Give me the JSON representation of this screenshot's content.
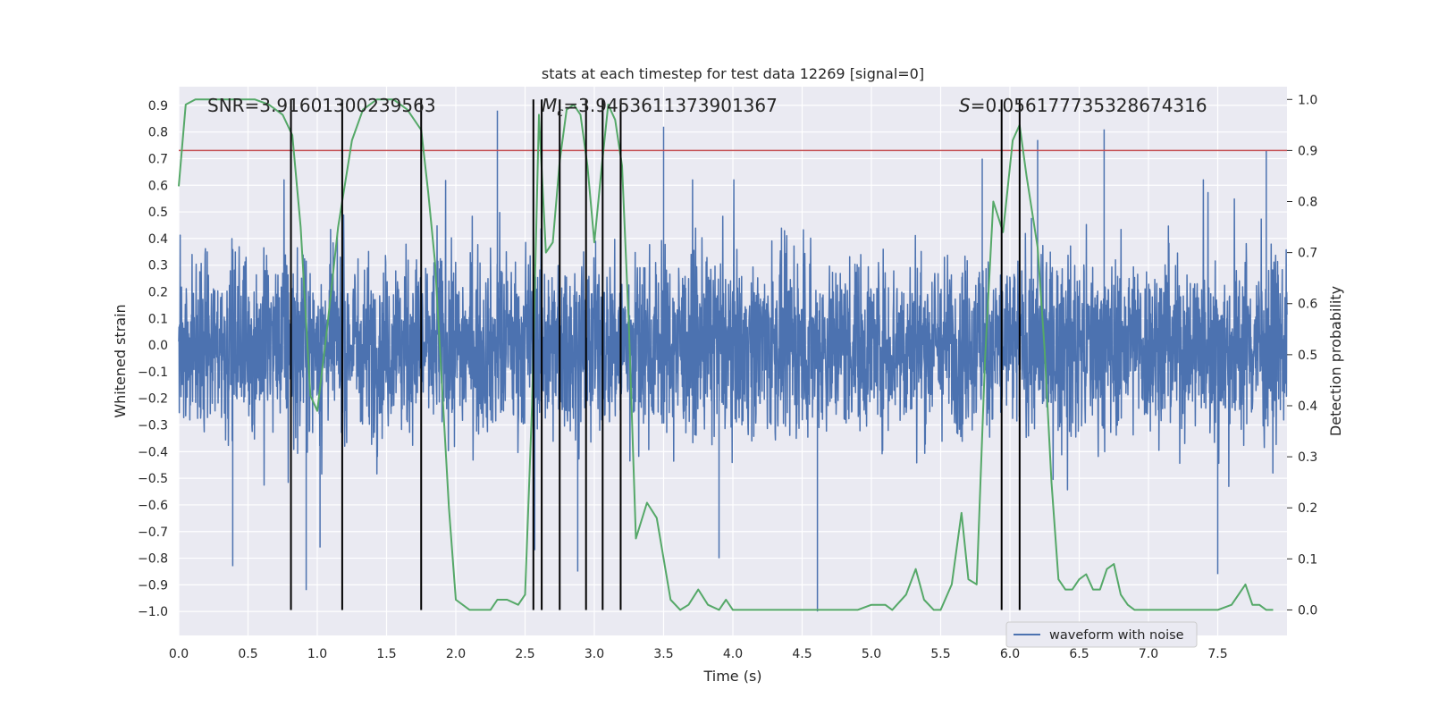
{
  "chart_data": {
    "type": "line",
    "title": "stats at each timestep for test data 12269 [signal=0]",
    "xlabel": "Time (s)",
    "ylabel_left": "Whitened strain",
    "ylabel_right": "Detection probability",
    "xlim": [
      0,
      8
    ],
    "ylim_left": [
      -1.09,
      0.97
    ],
    "ylim_right": [
      -0.05,
      1.025
    ],
    "x_ticks": [
      "0.0",
      "0.5",
      "1.0",
      "1.5",
      "2.0",
      "2.5",
      "3.0",
      "3.5",
      "4.0",
      "4.5",
      "5.0",
      "5.5",
      "6.0",
      "6.5",
      "7.0",
      "7.5"
    ],
    "x_tick_values": [
      0,
      0.5,
      1,
      1.5,
      2,
      2.5,
      3,
      3.5,
      4,
      4.5,
      5,
      5.5,
      6,
      6.5,
      7,
      7.5
    ],
    "y_left_ticks": [
      "0.9",
      "0.8",
      "0.7",
      "0.6",
      "0.5",
      "0.4",
      "0.3",
      "0.2",
      "0.1",
      "0.0",
      "−0.1",
      "−0.2",
      "−0.3",
      "−0.4",
      "−0.5",
      "−0.6",
      "−0.7",
      "−0.8",
      "−0.9",
      "−1.0"
    ],
    "y_left_tick_values": [
      0.9,
      0.8,
      0.7,
      0.6,
      0.5,
      0.4,
      0.3,
      0.2,
      0.1,
      0.0,
      -0.1,
      -0.2,
      -0.3,
      -0.4,
      -0.5,
      -0.6,
      -0.7,
      -0.8,
      -0.9,
      -1.0
    ],
    "y_right_ticks": [
      "1.0",
      "0.9",
      "0.8",
      "0.7",
      "0.6",
      "0.5",
      "0.4",
      "0.3",
      "0.2",
      "0.1",
      "0.0"
    ],
    "y_right_tick_values": [
      1.0,
      0.9,
      0.8,
      0.7,
      0.6,
      0.5,
      0.4,
      0.3,
      0.2,
      0.1,
      0.0
    ],
    "annotations": {
      "snr": "SNR=3.91601300239563",
      "mc_symbol": "M",
      "mc_sub": "c",
      "mc_value": "=3.9453611373901367",
      "s_symbol": "S",
      "s_value": "=0.056177735328674316"
    },
    "threshold": {
      "value": 0.9,
      "axis": "right",
      "color": "#c44e52"
    },
    "vertical_markers": [
      0.81,
      1.18,
      1.75,
      2.56,
      2.62,
      2.75,
      2.94,
      3.06,
      3.19,
      5.94,
      6.07
    ],
    "marker_range_right": [
      0.0,
      1.0
    ],
    "series": [
      {
        "name": "waveform with noise",
        "axis": "left",
        "color": "#4c72b0",
        "kind": "noise",
        "typical_range": [
          -0.55,
          0.62
        ],
        "spikes": [
          {
            "x": 0.39,
            "y": -0.83
          },
          {
            "x": 0.92,
            "y": -0.92
          },
          {
            "x": 1.02,
            "y": -0.76
          },
          {
            "x": 2.3,
            "y": 0.88
          },
          {
            "x": 2.57,
            "y": -0.77
          },
          {
            "x": 2.88,
            "y": -0.85
          },
          {
            "x": 3.5,
            "y": 0.82
          },
          {
            "x": 3.9,
            "y": -0.8
          },
          {
            "x": 4.61,
            "y": -1.0
          },
          {
            "x": 6.2,
            "y": 0.77
          },
          {
            "x": 6.68,
            "y": 0.81
          },
          {
            "x": 7.5,
            "y": -0.86
          },
          {
            "x": 7.85,
            "y": 0.73
          },
          {
            "x": 5.8,
            "y": 0.7
          }
        ]
      },
      {
        "name": "",
        "axis": "right",
        "color": "#55a868",
        "kind": "line",
        "x": [
          0,
          0.05,
          0.12,
          0.25,
          0.4,
          0.55,
          0.65,
          0.75,
          0.82,
          0.88,
          0.95,
          1.0,
          1.07,
          1.15,
          1.25,
          1.33,
          1.43,
          1.55,
          1.65,
          1.75,
          1.8,
          1.85,
          1.95,
          2.0,
          2.1,
          2.2,
          2.25,
          2.3,
          2.37,
          2.45,
          2.5,
          2.55,
          2.6,
          2.65,
          2.7,
          2.75,
          2.8,
          2.85,
          2.9,
          2.95,
          3.0,
          3.05,
          3.1,
          3.15,
          3.2,
          3.25,
          3.3,
          3.38,
          3.45,
          3.55,
          3.62,
          3.68,
          3.75,
          3.82,
          3.9,
          3.95,
          4.0,
          4.1,
          4.3,
          4.5,
          4.7,
          4.9,
          5.0,
          5.1,
          5.15,
          5.25,
          5.32,
          5.38,
          5.45,
          5.5,
          5.58,
          5.65,
          5.7,
          5.76,
          5.82,
          5.88,
          5.95,
          6.02,
          6.07,
          6.12,
          6.2,
          6.25,
          6.3,
          6.35,
          6.4,
          6.45,
          6.5,
          6.55,
          6.6,
          6.65,
          6.7,
          6.75,
          6.8,
          6.85,
          6.9,
          6.95,
          7.0,
          7.1,
          7.2,
          7.3,
          7.4,
          7.5,
          7.6,
          7.7,
          7.75,
          7.8,
          7.85,
          7.9
        ],
        "y": [
          0.83,
          0.99,
          1.0,
          1.0,
          1.0,
          1.0,
          0.99,
          0.97,
          0.93,
          0.75,
          0.42,
          0.39,
          0.55,
          0.75,
          0.92,
          0.98,
          1.0,
          1.0,
          0.98,
          0.94,
          0.82,
          0.68,
          0.2,
          0.02,
          0.0,
          0.0,
          0.0,
          0.02,
          0.02,
          0.01,
          0.03,
          0.4,
          0.97,
          0.7,
          0.72,
          0.88,
          0.98,
          0.99,
          0.97,
          0.87,
          0.72,
          0.86,
          0.99,
          0.96,
          0.87,
          0.55,
          0.14,
          0.21,
          0.18,
          0.02,
          0.0,
          0.01,
          0.04,
          0.01,
          0.0,
          0.02,
          0.0,
          0.0,
          0.0,
          0.0,
          0.0,
          0.0,
          0.01,
          0.01,
          0.0,
          0.03,
          0.08,
          0.02,
          0.0,
          0.0,
          0.05,
          0.19,
          0.06,
          0.05,
          0.49,
          0.8,
          0.74,
          0.92,
          0.95,
          0.85,
          0.71,
          0.51,
          0.25,
          0.06,
          0.04,
          0.04,
          0.06,
          0.07,
          0.04,
          0.04,
          0.08,
          0.09,
          0.03,
          0.01,
          0.0,
          0.0,
          0.0,
          0.0,
          0.0,
          0.0,
          0.0,
          0.0,
          0.01,
          0.05,
          0.01,
          0.01,
          0.0,
          0.0
        ]
      }
    ],
    "legend": {
      "placement": "lower right"
    },
    "grid": true
  }
}
